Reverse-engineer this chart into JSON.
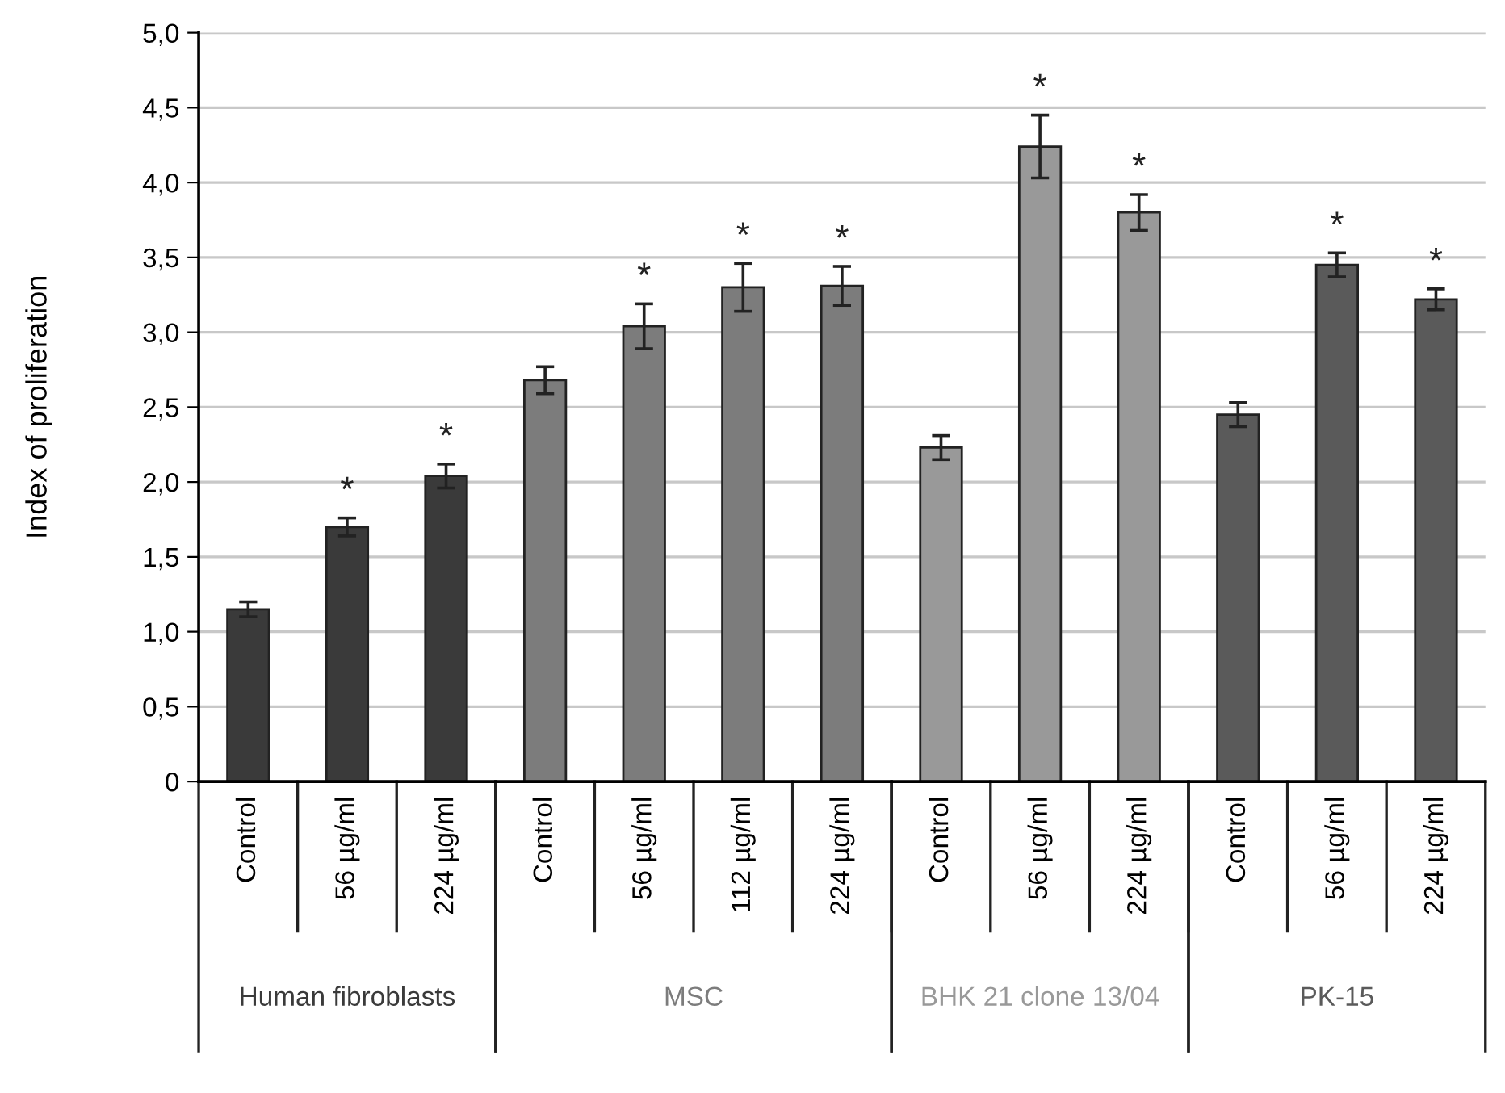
{
  "chart_data": {
    "type": "bar",
    "ylabel": "Index of proliferation",
    "categories": [
      "Control",
      "56 µg/ml",
      "224 µg/ml",
      "Control",
      "56 µg/ml",
      "112 µg/ml",
      "224 µg/ml",
      "Control",
      "56 µg/ml",
      "224 µg/ml",
      "Control",
      "56 µg/ml",
      "224 µg/ml"
    ],
    "series": [
      {
        "name": "Human fibroblasts",
        "color": "#3a3a3a",
        "values": [
          1.15,
          1.7,
          2.04,
          null,
          null,
          null,
          null,
          null,
          null,
          null,
          null,
          null,
          null
        ],
        "errors": [
          0.05,
          0.06,
          0.08,
          null,
          null,
          null,
          null,
          null,
          null,
          null,
          null,
          null,
          null
        ],
        "value_labels": [
          null,
          "*",
          "*",
          null,
          null,
          null,
          null,
          null,
          null,
          null,
          null,
          null,
          null
        ]
      },
      {
        "name": "MSC",
        "color": "#7c7c7c",
        "values": [
          null,
          null,
          null,
          2.68,
          3.04,
          3.3,
          3.31,
          null,
          null,
          null,
          null,
          null,
          null
        ],
        "errors": [
          null,
          null,
          null,
          0.09,
          0.15,
          0.16,
          0.13,
          null,
          null,
          null,
          null,
          null,
          null
        ],
        "value_labels": [
          null,
          null,
          null,
          null,
          "*",
          "*",
          "*",
          null,
          null,
          null,
          null,
          null,
          null
        ]
      },
      {
        "name": "BHK 21 clone 13/04",
        "color": "#999999",
        "values": [
          null,
          null,
          null,
          null,
          null,
          null,
          null,
          2.23,
          4.24,
          3.8,
          null,
          null,
          null
        ],
        "errors": [
          null,
          null,
          null,
          null,
          null,
          null,
          null,
          0.08,
          0.21,
          0.12,
          null,
          null,
          null
        ],
        "value_labels": [
          null,
          null,
          null,
          null,
          null,
          null,
          null,
          null,
          "*",
          "*",
          null,
          null,
          null
        ]
      },
      {
        "name": "PK-15",
        "color": "#5a5a5a",
        "values": [
          null,
          null,
          null,
          null,
          null,
          null,
          null,
          null,
          null,
          null,
          2.45,
          3.45,
          3.22
        ],
        "errors": [
          null,
          null,
          null,
          null,
          null,
          null,
          null,
          null,
          null,
          null,
          0.08,
          0.08,
          0.07
        ],
        "value_labels": [
          null,
          null,
          null,
          null,
          null,
          null,
          null,
          null,
          null,
          null,
          null,
          "*",
          "*"
        ]
      }
    ],
    "ylim": [
      0,
      5
    ],
    "yticks": [
      0,
      {
        "value": 0.5,
        "label": "0,5"
      },
      {
        "value": 1,
        "label": "1,0"
      },
      {
        "value": 1.5,
        "label": "1,5"
      },
      {
        "value": 2,
        "label": "2,0"
      },
      {
        "value": 2.5,
        "label": "2,5"
      },
      {
        "value": 3,
        "label": "3,0"
      },
      {
        "value": 3.5,
        "label": "3,5"
      },
      {
        "value": 4,
        "label": "4,0"
      },
      {
        "value": 4.5,
        "label": "4,5"
      },
      {
        "value": 5,
        "label": "5,0"
      }
    ],
    "grid": "y",
    "legend": false
  }
}
